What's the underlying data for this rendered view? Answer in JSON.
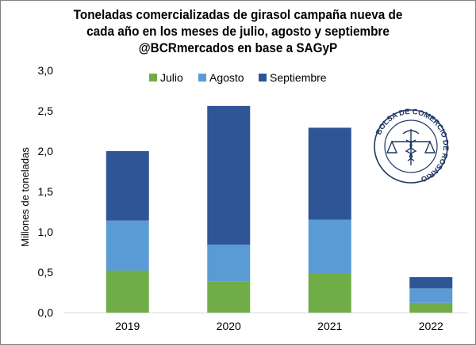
{
  "chart_data": {
    "type": "bar",
    "stacked": true,
    "title": [
      "Toneladas comercializadas de girasol campaña nueva de",
      "cada año en los meses de julio, agosto  y septiembre",
      "@BCRmercados en base a SAGyP"
    ],
    "xlabel": "",
    "ylabel": "Millones de toneladas",
    "ylim": [
      0,
      3.0
    ],
    "yticks": [
      "0,0",
      "0,5",
      "1,0",
      "1,5",
      "2,0",
      "2,5",
      "3,0"
    ],
    "categories": [
      "2019",
      "2020",
      "2021",
      "2022"
    ],
    "series": [
      {
        "name": "Julio",
        "color": "#70ad47",
        "values": [
          0.52,
          0.39,
          0.48,
          0.12
        ]
      },
      {
        "name": "Agosto",
        "color": "#5b9bd5",
        "values": [
          0.62,
          0.45,
          0.67,
          0.18
        ]
      },
      {
        "name": "Septiembre",
        "color": "#2f5597",
        "values": [
          0.86,
          1.72,
          1.14,
          0.14
        ]
      }
    ],
    "legend_position": "top",
    "grid": false
  },
  "logo": {
    "text": "BOLSA DE COMERCIO DE ROSARIO",
    "color": "#1f3864"
  }
}
